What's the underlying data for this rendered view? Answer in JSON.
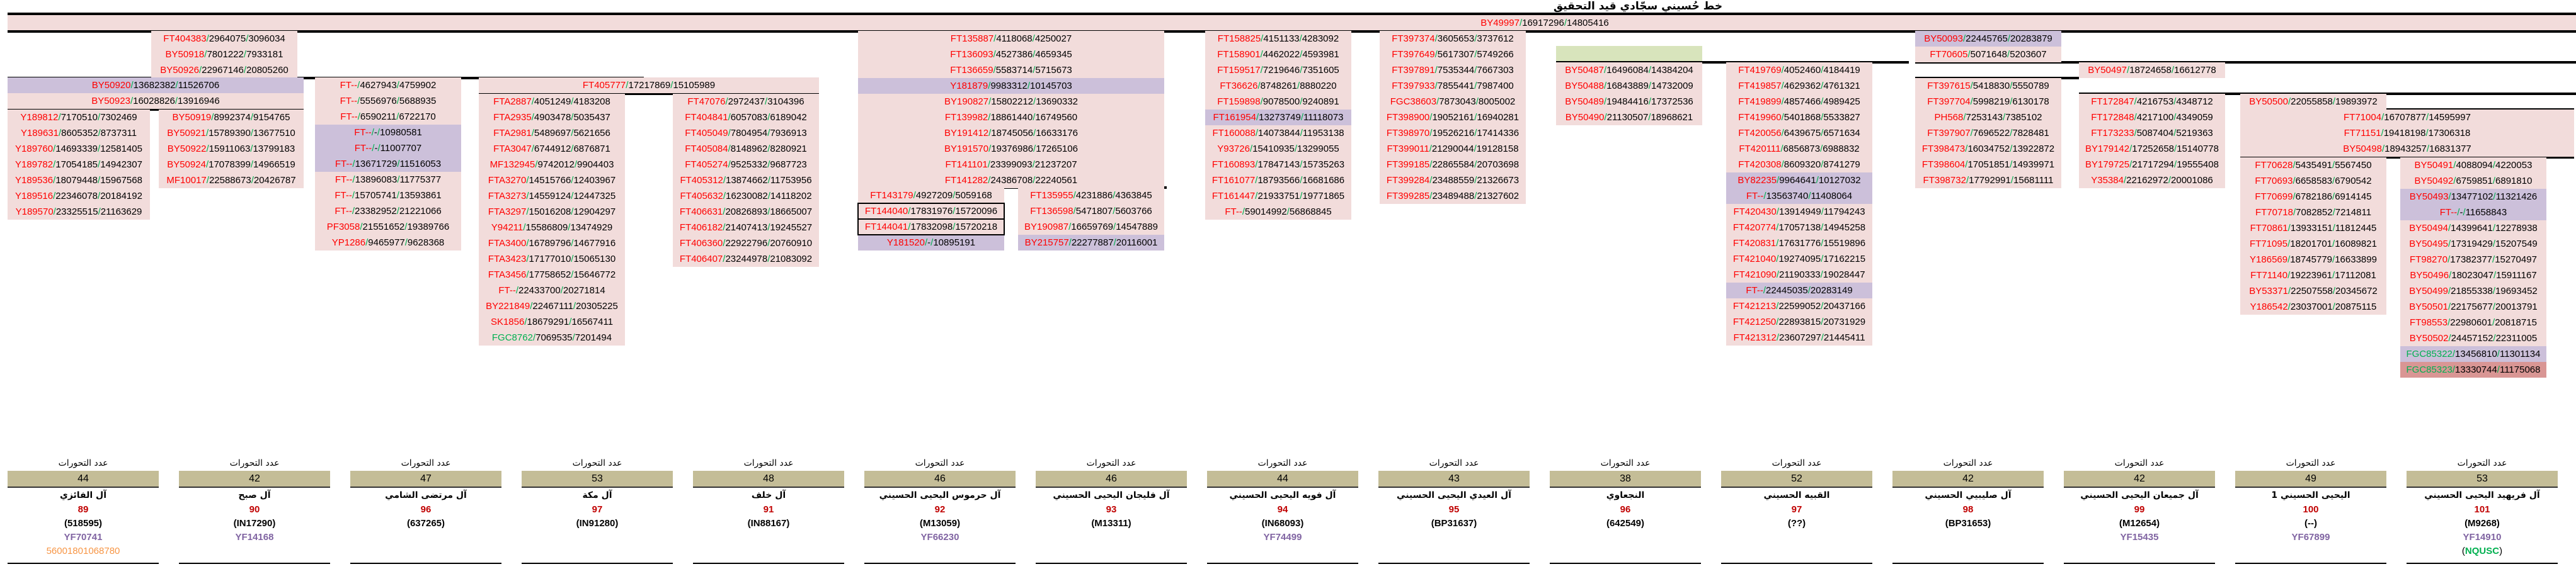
{
  "title": "خط حُسيني سجّادي قيد التحقيق",
  "colors": {
    "snp_red": "#ff0000",
    "snp_green": "#00b050",
    "separator": "#00b050",
    "pink": "#f2dcdb",
    "purple": "#ccc0da",
    "darkred": "#d99694",
    "khaki": "#c4bd97",
    "group_num": "#c00000",
    "yf": "#8064a2",
    "orange": "#f79646"
  },
  "top_band": [
    {
      "snp": "BY49997",
      "p1": "16917296",
      "p2": "14805416"
    }
  ],
  "blocks": {
    "b_fair_top": [
      {
        "snp": "FT404383",
        "p1": "2964075",
        "p2": "3096034"
      },
      {
        "snp": "BY50918",
        "p1": "7801222",
        "p2": "7933181"
      },
      {
        "snp": "BY50926",
        "p1": "22967146",
        "p2": "20805260"
      }
    ],
    "b_fair_mid": [
      {
        "snp": "BY50920",
        "p1": "13682382",
        "p2": "11526706",
        "bg": "purple"
      },
      {
        "snp": "BY50923",
        "p1": "16028826",
        "p2": "13916946"
      }
    ],
    "b_fair": [
      {
        "snp": "Y189812",
        "p1": "7170510",
        "p2": "7302469"
      },
      {
        "snp": "Y189631",
        "p1": "8605352",
        "p2": "8737311"
      },
      {
        "snp": "Y189760",
        "p1": "14693339",
        "p2": "12581405"
      },
      {
        "snp": "Y189782",
        "p1": "17054185",
        "p2": "14942307"
      },
      {
        "snp": "Y189536",
        "p1": "18079448",
        "p2": "15967568"
      },
      {
        "snp": "Y189516",
        "p1": "22346078",
        "p2": "20184192"
      },
      {
        "snp": "Y189570",
        "p1": "23325515",
        "p2": "21163629"
      }
    ],
    "b_subh": [
      {
        "snp": "BY50919",
        "p1": "8992374",
        "p2": "9154765"
      },
      {
        "snp": "BY50921",
        "p1": "15789390",
        "p2": "13677510"
      },
      {
        "snp": "BY50922",
        "p1": "15911063",
        "p2": "13799183"
      },
      {
        "snp": "BY50924",
        "p1": "17078399",
        "p2": "14966519"
      },
      {
        "snp": "MF10017",
        "p1": "22588673",
        "p2": "20426787"
      }
    ],
    "b_shami": [
      {
        "snp": "FT--",
        "p1": "4627943",
        "p2": "4759902"
      },
      {
        "snp": "FT--",
        "p1": "5556976",
        "p2": "5688935"
      },
      {
        "snp": "FT--",
        "p1": "6590211",
        "p2": "6722170"
      },
      {
        "snp": "FT--",
        "p1": "-",
        "p2": "10980581",
        "bg": "purple"
      },
      {
        "snp": "FT--",
        "p1": "-",
        "p2": "11007707",
        "bg": "purple"
      },
      {
        "snp": "FT--",
        "p1": "13671729",
        "p2": "11516053",
        "bg": "purple"
      },
      {
        "snp": "FT--",
        "p1": "13896083",
        "p2": "11775377"
      },
      {
        "snp": "FT--",
        "p1": "15705741",
        "p2": "13593861"
      },
      {
        "snp": "FT--",
        "p1": "23382952",
        "p2": "21221066"
      },
      {
        "snp": "PF3058",
        "p1": "21551652",
        "p2": "19389766"
      },
      {
        "snp": "YP1286",
        "p1": "9465977",
        "p2": "9628368"
      }
    ],
    "b_mk_top": [
      {
        "snp": "FT405777",
        "p1": "17217869",
        "p2": "15105989"
      }
    ],
    "b_makka": [
      {
        "snp": "FTA2887",
        "p1": "4051249",
        "p2": "4183208"
      },
      {
        "snp": "FTA2935",
        "p1": "4903478",
        "p2": "5035437"
      },
      {
        "snp": "FTA2981",
        "p1": "5489697",
        "p2": "5621656"
      },
      {
        "snp": "FTA3047",
        "p1": "6744912",
        "p2": "6876871"
      },
      {
        "snp": "MF132945",
        "p1": "9742012",
        "p2": "9904403"
      },
      {
        "snp": "FTA3270",
        "p1": "14515766",
        "p2": "12403967"
      },
      {
        "snp": "FTA3273",
        "p1": "14559124",
        "p2": "12447325"
      },
      {
        "snp": "FTA3297",
        "p1": "15016208",
        "p2": "12904297"
      },
      {
        "snp": "Y94211",
        "p1": "15586809",
        "p2": "13474929"
      },
      {
        "snp": "FTA3400",
        "p1": "16789796",
        "p2": "14677916"
      },
      {
        "snp": "FTA3423",
        "p1": "17177010",
        "p2": "15065130"
      },
      {
        "snp": "FTA3456",
        "p1": "17758652",
        "p2": "15646772"
      },
      {
        "snp": "FT--",
        "p1": "22433700",
        "p2": "20271814"
      },
      {
        "snp": "BY221849",
        "p1": "22467111",
        "p2": "20305225"
      },
      {
        "snp": "SK1856",
        "p1": "18679291",
        "p2": "16567411"
      },
      {
        "snp": "FGC8762",
        "p1": "7069535",
        "p2": "7201494",
        "green": true
      }
    ],
    "b_khalaf": [
      {
        "snp": "FT47076",
        "p1": "2972437",
        "p2": "3104396"
      },
      {
        "snp": "FT404841",
        "p1": "6057083",
        "p2": "6189042"
      },
      {
        "snp": "FT405049",
        "p1": "7804954",
        "p2": "7936913"
      },
      {
        "snp": "FT405084",
        "p1": "8148962",
        "p2": "8280921"
      },
      {
        "snp": "FT405274",
        "p1": "9525332",
        "p2": "9687723"
      },
      {
        "snp": "FT405312",
        "p1": "13874662",
        "p2": "11753956"
      },
      {
        "snp": "FT405632",
        "p1": "16230082",
        "p2": "14118202"
      },
      {
        "snp": "FT406631",
        "p1": "20826893",
        "p2": "18665007"
      },
      {
        "snp": "FT406182",
        "p1": "21407413",
        "p2": "19245527"
      },
      {
        "snp": "FT406360",
        "p1": "22922796",
        "p2": "20760910"
      },
      {
        "snp": "FT406407",
        "p1": "23244978",
        "p2": "21083092"
      }
    ],
    "b_yahya_top": [
      {
        "snp": "FT135887",
        "p1": "4118068",
        "p2": "4250027"
      },
      {
        "snp": "FT136093",
        "p1": "4527386",
        "p2": "4659345"
      },
      {
        "snp": "FT136659",
        "p1": "5583714",
        "p2": "5715673"
      },
      {
        "snp": "Y181879",
        "p1": "9983312",
        "p2": "10145703",
        "bg": "purple"
      },
      {
        "snp": "BY190827",
        "p1": "15802212",
        "p2": "13690332"
      },
      {
        "snp": "FT139982",
        "p1": "18861440",
        "p2": "16749560"
      },
      {
        "snp": "BY191412",
        "p1": "18745056",
        "p2": "16633176"
      },
      {
        "snp": "BY191570",
        "p1": "19376986",
        "p2": "17265106"
      },
      {
        "snp": "FT141101",
        "p1": "23399093",
        "p2": "21237207"
      },
      {
        "snp": "FT141282",
        "p1": "24386708",
        "p2": "22240561"
      }
    ],
    "b_harmous": [
      {
        "snp": "FT143179",
        "p1": "4927209",
        "p2": "5059168"
      },
      {
        "snp": "FT144040",
        "p1": "17831976",
        "p2": "15720096",
        "boxed": true
      },
      {
        "snp": "FT144041",
        "p1": "17832098",
        "p2": "15720218",
        "boxed": true
      },
      {
        "snp": "Y181520",
        "p1": "-",
        "p2": "10895191",
        "bg": "purple"
      }
    ],
    "b_fleijan": [
      {
        "snp": "FT135955",
        "p1": "4231886",
        "p2": "4363845"
      },
      {
        "snp": "FT136598",
        "p1": "5471807",
        "p2": "5603766"
      },
      {
        "snp": "BY190987",
        "p1": "16659769",
        "p2": "14547889"
      },
      {
        "snp": "BY215757",
        "p1": "22277887",
        "p2": "20116001",
        "bg": "purple"
      }
    ],
    "b_fawayh": [
      {
        "snp": "FT158825",
        "p1": "4151133",
        "p2": "4283092"
      },
      {
        "snp": "FT158901",
        "p1": "4462022",
        "p2": "4593981"
      },
      {
        "snp": "FT159517",
        "p1": "7219646",
        "p2": "7351605"
      },
      {
        "snp": "FT36626",
        "p1": "8748261",
        "p2": "8880220"
      },
      {
        "snp": "FT159898",
        "p1": "9078500",
        "p2": "9240891"
      },
      {
        "snp": "FT161954",
        "p1": "13273749",
        "p2": "11118073",
        "bg": "purple"
      },
      {
        "snp": "FT160088",
        "p1": "14073844",
        "p2": "11953138"
      },
      {
        "snp": "Y93726",
        "p1": "15410935",
        "p2": "13299055"
      },
      {
        "snp": "FT160893",
        "p1": "17847143",
        "p2": "15735263"
      },
      {
        "snp": "FT161077",
        "p1": "18793566",
        "p2": "16681686"
      },
      {
        "snp": "FT161447",
        "p1": "21933751",
        "p2": "19771865"
      },
      {
        "snp": "FT--",
        "p1": "59014992",
        "p2": "56868845"
      }
    ],
    "b_eidi": [
      {
        "snp": "FT397374",
        "p1": "3605653",
        "p2": "3737612"
      },
      {
        "snp": "FT397649",
        "p1": "5617307",
        "p2": "5749266"
      },
      {
        "snp": "FT397891",
        "p1": "7535344",
        "p2": "7667303"
      },
      {
        "snp": "FT397933",
        "p1": "7855441",
        "p2": "7987400"
      },
      {
        "snp": "FGC38603",
        "p1": "7873043",
        "p2": "8005002"
      },
      {
        "snp": "FT398900",
        "p1": "19052161",
        "p2": "16940281"
      },
      {
        "snp": "FT398970",
        "p1": "19526216",
        "p2": "17414336"
      },
      {
        "snp": "FT399011",
        "p1": "21290044",
        "p2": "19128158"
      },
      {
        "snp": "FT399185",
        "p1": "22865584",
        "p2": "20703698"
      },
      {
        "snp": "FT399284",
        "p1": "23488559",
        "p2": "21326673"
      },
      {
        "snp": "FT399285",
        "p1": "23489488",
        "p2": "21327602"
      }
    ],
    "b_najaawi": [
      {
        "snp": "BY50487",
        "p1": "16496084",
        "p2": "14384204"
      },
      {
        "snp": "BY50488",
        "p1": "16843889",
        "p2": "14732009"
      },
      {
        "snp": "BY50489",
        "p1": "19484416",
        "p2": "17372536"
      },
      {
        "snp": "BY50490",
        "p1": "21130507",
        "p2": "18968621"
      }
    ],
    "b_qubayh": [
      {
        "snp": "FT419769",
        "p1": "4052460",
        "p2": "4184419"
      },
      {
        "snp": "FT419857",
        "p1": "4629362",
        "p2": "4761321"
      },
      {
        "snp": "FT419899",
        "p1": "4857466",
        "p2": "4989425"
      },
      {
        "snp": "FT419960",
        "p1": "5401868",
        "p2": "5533827"
      },
      {
        "snp": "FT420056",
        "p1": "6439675",
        "p2": "6571634"
      },
      {
        "snp": "FT420111",
        "p1": "6856873",
        "p2": "6988832"
      },
      {
        "snp": "FT420308",
        "p1": "8609320",
        "p2": "8741279"
      },
      {
        "snp": "BY82235",
        "p1": "9964641",
        "p2": "10127032",
        "bg": "purple"
      },
      {
        "snp": "FT--",
        "p1": "13563740",
        "p2": "11408064",
        "bg": "purple"
      },
      {
        "snp": "FT420430",
        "p1": "13914949",
        "p2": "11794243"
      },
      {
        "snp": "FT420774",
        "p1": "17057138",
        "p2": "14945258"
      },
      {
        "snp": "FT420831",
        "p1": "17631776",
        "p2": "15519896"
      },
      {
        "snp": "FT421040",
        "p1": "19274095",
        "p2": "17162215"
      },
      {
        "snp": "FT421090",
        "p1": "21190333",
        "p2": "19028447"
      },
      {
        "snp": "FT--",
        "p1": "22445035",
        "p2": "20283149",
        "bg": "purple"
      },
      {
        "snp": "FT421213",
        "p1": "22599052",
        "p2": "20437166"
      },
      {
        "snp": "FT421250",
        "p1": "22893815",
        "p2": "20731929"
      },
      {
        "snp": "FT421312",
        "p1": "23607297",
        "p2": "21445411"
      }
    ],
    "b_sub2_top": [
      {
        "snp": "BY50093",
        "p1": "22445765",
        "p2": "20283879",
        "bg": "purple"
      },
      {
        "snp": "FT70605",
        "p1": "5071648",
        "p2": "5203607"
      }
    ],
    "b_sulaybi": [
      {
        "snp": "FT397615",
        "p1": "5418830",
        "p2": "5550789"
      },
      {
        "snp": "FT397704",
        "p1": "5998219",
        "p2": "6130178"
      },
      {
        "snp": "PH568",
        "p1": "7253143",
        "p2": "7385102"
      },
      {
        "snp": "FT397907",
        "p1": "7696522",
        "p2": "7828481"
      },
      {
        "snp": "FT398473",
        "p1": "16034752",
        "p2": "13922872"
      },
      {
        "snp": "FT398604",
        "p1": "17051851",
        "p2": "14939971"
      },
      {
        "snp": "FT398732",
        "p1": "17792991",
        "p2": "15681111"
      }
    ],
    "b_by50497": [
      {
        "snp": "BY50497",
        "p1": "18724658",
        "p2": "16612778"
      }
    ],
    "b_jumayan": [
      {
        "snp": "FT172847",
        "p1": "4216753",
        "p2": "4348712"
      },
      {
        "snp": "FT172848",
        "p1": "4217100",
        "p2": "4349059"
      },
      {
        "snp": "FT173233",
        "p1": "5087404",
        "p2": "5219363"
      },
      {
        "snp": "BY179142",
        "p1": "17252658",
        "p2": "15140778"
      },
      {
        "snp": "BY179725",
        "p1": "21717294",
        "p2": "19555408"
      },
      {
        "snp": "Y35384",
        "p1": "22162972",
        "p2": "20001086"
      }
    ],
    "b_by50500": [
      {
        "snp": "BY50500",
        "p1": "22055858",
        "p2": "19893972"
      }
    ],
    "b_right_top": [
      {
        "snp": "FT71004",
        "p1": "16707877",
        "p2": "14595997"
      },
      {
        "snp": "FT71151",
        "p1": "19418198",
        "p2": "17306318"
      },
      {
        "snp": "BY50498",
        "p1": "18943257",
        "p2": "16831377"
      }
    ],
    "b_yahya1": [
      {
        "snp": "FT70628",
        "p1": "5435491",
        "p2": "5567450"
      },
      {
        "snp": "FT70693",
        "p1": "6658583",
        "p2": "6790542"
      },
      {
        "snp": "FT70699",
        "p1": "6782186",
        "p2": "6914145"
      },
      {
        "snp": "FT70718",
        "p1": "7082852",
        "p2": "7214811"
      },
      {
        "snp": "FT70861",
        "p1": "13933151",
        "p2": "11812445"
      },
      {
        "snp": "FT71095",
        "p1": "18201701",
        "p2": "16089821"
      },
      {
        "snp": "Y186569",
        "p1": "18745779",
        "p2": "16633899"
      },
      {
        "snp": "FT71140",
        "p1": "19223961",
        "p2": "17112081"
      },
      {
        "snp": "BY53371",
        "p1": "22507558",
        "p2": "20345672"
      },
      {
        "snp": "Y186542",
        "p1": "23037001",
        "p2": "20875115"
      }
    ],
    "b_freihid": [
      {
        "snp": "BY50491",
        "p1": "4088094",
        "p2": "4220053"
      },
      {
        "snp": "BY50492",
        "p1": "6759851",
        "p2": "6891810"
      },
      {
        "snp": "BY50493",
        "p1": "13477102",
        "p2": "11321426",
        "bg": "purple"
      },
      {
        "snp": "FT--",
        "p1": "-",
        "p2": "11658843",
        "bg": "purple"
      },
      {
        "snp": "BY50494",
        "p1": "14399641",
        "p2": "12278938"
      },
      {
        "snp": "BY50495",
        "p1": "17319429",
        "p2": "15207549"
      },
      {
        "snp": "FT98270",
        "p1": "17382377",
        "p2": "15270497"
      },
      {
        "snp": "BY50496",
        "p1": "18023047",
        "p2": "15911167"
      },
      {
        "snp": "BY50499",
        "p1": "21855338",
        "p2": "19693452"
      },
      {
        "snp": "BY50501",
        "p1": "22175677",
        "p2": "20013791"
      },
      {
        "snp": "FT98553",
        "p1": "22980601",
        "p2": "20818715"
      },
      {
        "snp": "BY50502",
        "p1": "24457152",
        "p2": "22311005"
      },
      {
        "snp": "FGC85322",
        "p1": "13456810",
        "p2": "11301134",
        "bg": "purple",
        "green": true
      },
      {
        "snp": "FGC85323",
        "p1": "13330744",
        "p2": "11175068",
        "bg": "darkred",
        "green": true
      }
    ]
  },
  "groups": [
    {
      "label": "عدد التحورات",
      "count": "44",
      "name": "آل الفائزي",
      "num": "89",
      "code": "(518595)",
      "yf": "YF70741",
      "extra": "56001801068780",
      "extra_style": "orange"
    },
    {
      "label": "عدد التحورات",
      "count": "42",
      "name": "آل صبح",
      "num": "90",
      "code": "(IN17290)",
      "yf": "YF14168",
      "extra": ""
    },
    {
      "label": "عدد التحورات",
      "count": "47",
      "name": "آل مرتضى الشامي",
      "num": "96",
      "code": "(637265)",
      "yf": "",
      "extra": ""
    },
    {
      "label": "عدد التحورات",
      "count": "53",
      "name": "آل مكة",
      "num": "97",
      "code": "(IN91280)",
      "yf": "",
      "extra": ""
    },
    {
      "label": "عدد التحورات",
      "count": "48",
      "name": "آل خلف",
      "num": "91",
      "code": "(IN88167)",
      "yf": "",
      "extra": ""
    },
    {
      "label": "عدد التحورات",
      "count": "46",
      "name": "آل حرموس اليحيى الحسيني",
      "num": "92",
      "code": "(M13059)",
      "yf": "YF66230",
      "extra": ""
    },
    {
      "label": "عدد التحورات",
      "count": "46",
      "name": "آل فليجان اليحيى الحسيني",
      "num": "93",
      "code": "(M13311)",
      "yf": "",
      "extra": ""
    },
    {
      "label": "عدد التحورات",
      "count": "44",
      "name": "آل فويه اليحيى الحسيني",
      "num": "94",
      "code": "(IN68093)",
      "yf": "YF74499",
      "extra": ""
    },
    {
      "label": "عدد التحورات",
      "count": "43",
      "name": "آل العيدي اليحيى الحسيني",
      "num": "95",
      "code": "(BP31637)",
      "yf": "",
      "extra": ""
    },
    {
      "label": "عدد التحورات",
      "count": "38",
      "name": "النجعاوي",
      "num": "96",
      "code": "(642549)",
      "yf": "",
      "extra": ""
    },
    {
      "label": "عدد التحورات",
      "count": "52",
      "name": "القبيه الحسيني",
      "num": "97",
      "code": "(??)",
      "yf": "",
      "extra": ""
    },
    {
      "label": "عدد التحورات",
      "count": "42",
      "name": "آل صليبيي الحسيني",
      "num": "98",
      "code": "(BP31653)",
      "yf": "",
      "extra": ""
    },
    {
      "label": "عدد التحورات",
      "count": "42",
      "name": "آل جميعان اليحيى الحسيني",
      "num": "99",
      "code": "(M12654)",
      "yf": "YF15435",
      "extra": ""
    },
    {
      "label": "عدد التحورات",
      "count": "49",
      "name": "اليحيى الحسيني 1",
      "num": "100",
      "code": "(--)",
      "yf": "YF67899",
      "extra": ""
    },
    {
      "label": "عدد التحورات",
      "count": "53",
      "name": "آل فريهيد اليحيى الحسيني",
      "num": "101",
      "code": "(M9268)",
      "yf": "YF14910",
      "extra": "NQUSC",
      "extra_style": "paren-green"
    }
  ]
}
